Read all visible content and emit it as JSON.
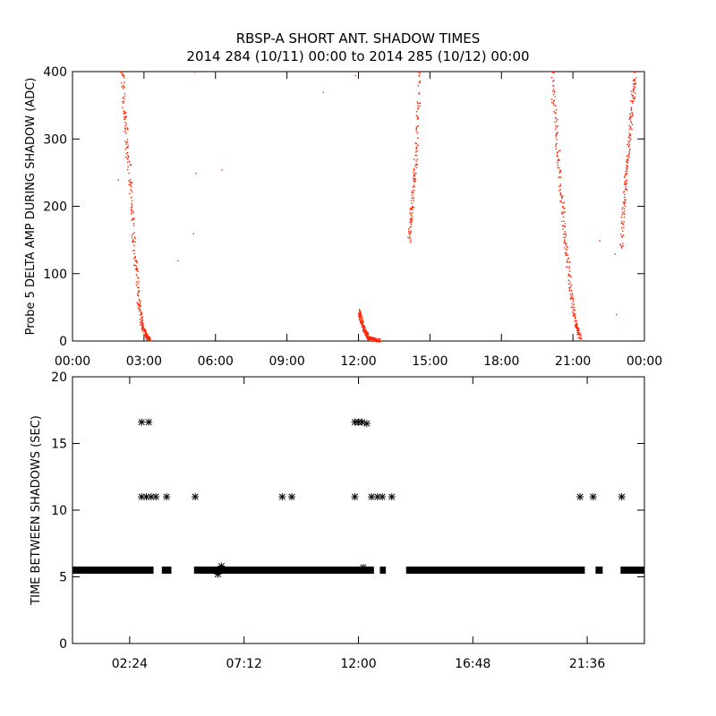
{
  "title_line1": "RBSP-A SHORT ANT. SHADOW TIMES",
  "title_line2": "2014 284 (10/11) 00:00 to 2014 285 (10/12) 00:00",
  "colors": {
    "red_points": "#ff2200",
    "black_points": "#000000"
  },
  "chart_data": [
    {
      "type": "scatter",
      "ylabel": "Probe 5 DELTA AMP DURING SHADOW (ADC)",
      "xlim": [
        0,
        24
      ],
      "ylim": [
        0,
        400
      ],
      "x_ticks": [
        "00:00",
        "03:00",
        "06:00",
        "09:00",
        "12:00",
        "15:00",
        "18:00",
        "21:00",
        "00:00"
      ],
      "y_ticks": [
        "0",
        "100",
        "200",
        "300",
        "400"
      ],
      "series": [
        {
          "color": "#ff2200",
          "note": "dense point tracks, x in hours of day, y in ADC",
          "tracks": [
            {
              "x": [
                2.05,
                2.2,
                2.4,
                2.6,
                2.75,
                2.9,
                3.05,
                3.2
              ],
              "y": [
                400,
                320,
                230,
                130,
                60,
                25,
                10,
                3
              ]
            },
            {
              "x": [
                12.0,
                12.1,
                12.25,
                12.4,
                12.6,
                12.9
              ],
              "y": [
                45,
                30,
                15,
                6,
                3,
                1
              ]
            },
            {
              "x": [
                14.1,
                14.25,
                14.4,
                14.55
              ],
              "y": [
                150,
                210,
                280,
                400
              ]
            },
            {
              "x": [
                20.1,
                20.3,
                20.5,
                20.7,
                20.9,
                21.1,
                21.3
              ],
              "y": [
                400,
                300,
                210,
                140,
                70,
                25,
                3
              ]
            },
            {
              "x": [
                23.0,
                23.15,
                23.3,
                23.45,
                23.6
              ],
              "y": [
                140,
                220,
                280,
                350,
                400
              ]
            }
          ],
          "scatter": [
            [
              1.9,
              240
            ],
            [
              4.4,
              120
            ],
            [
              5.05,
              160
            ],
            [
              5.1,
              400
            ],
            [
              5.15,
              250
            ],
            [
              6.25,
              255
            ],
            [
              10.5,
              370
            ],
            [
              11.85,
              395
            ],
            [
              22.1,
              150
            ],
            [
              22.75,
              130
            ],
            [
              22.8,
              40
            ]
          ]
        }
      ]
    },
    {
      "type": "scatter",
      "ylabel": "TIME BETWEEN SHADOWS (SEC)",
      "xlim": [
        0,
        24
      ],
      "ylim": [
        0,
        20
      ],
      "x_tick_values": [
        2.4,
        7.2,
        12.0,
        16.8,
        21.6
      ],
      "x_ticks": [
        "02:24",
        "07:12",
        "12:00",
        "16:48",
        "21:36"
      ],
      "y_ticks": [
        "0",
        "5",
        "10",
        "15",
        "20"
      ],
      "series": [
        {
          "color": "#000000",
          "marker": "asterisk",
          "baseline_value": 5.5,
          "baseline_segments": [
            [
              0.0,
              3.4
            ],
            [
              3.75,
              4.15
            ],
            [
              5.1,
              12.65
            ],
            [
              12.9,
              13.15
            ],
            [
              14.0,
              21.5
            ],
            [
              21.95,
              22.25
            ],
            [
              23.0,
              24.0
            ]
          ],
          "points": [
            [
              2.9,
              16.6
            ],
            [
              3.2,
              16.6
            ],
            [
              11.85,
              16.6
            ],
            [
              12.0,
              16.6
            ],
            [
              12.15,
              16.6
            ],
            [
              12.35,
              16.5
            ],
            [
              2.9,
              11.0
            ],
            [
              3.1,
              11.0
            ],
            [
              3.3,
              11.0
            ],
            [
              3.5,
              11.0
            ],
            [
              3.95,
              11.0
            ],
            [
              5.15,
              11.0
            ],
            [
              8.8,
              11.0
            ],
            [
              9.2,
              11.0
            ],
            [
              11.85,
              11.0
            ],
            [
              12.55,
              11.0
            ],
            [
              12.8,
              11.0
            ],
            [
              13.0,
              11.0
            ],
            [
              13.4,
              11.0
            ],
            [
              21.3,
              11.0
            ],
            [
              21.85,
              11.0
            ],
            [
              23.05,
              11.0
            ],
            [
              6.1,
              5.2
            ],
            [
              6.25,
              5.8
            ],
            [
              12.2,
              5.7
            ]
          ]
        }
      ]
    }
  ]
}
